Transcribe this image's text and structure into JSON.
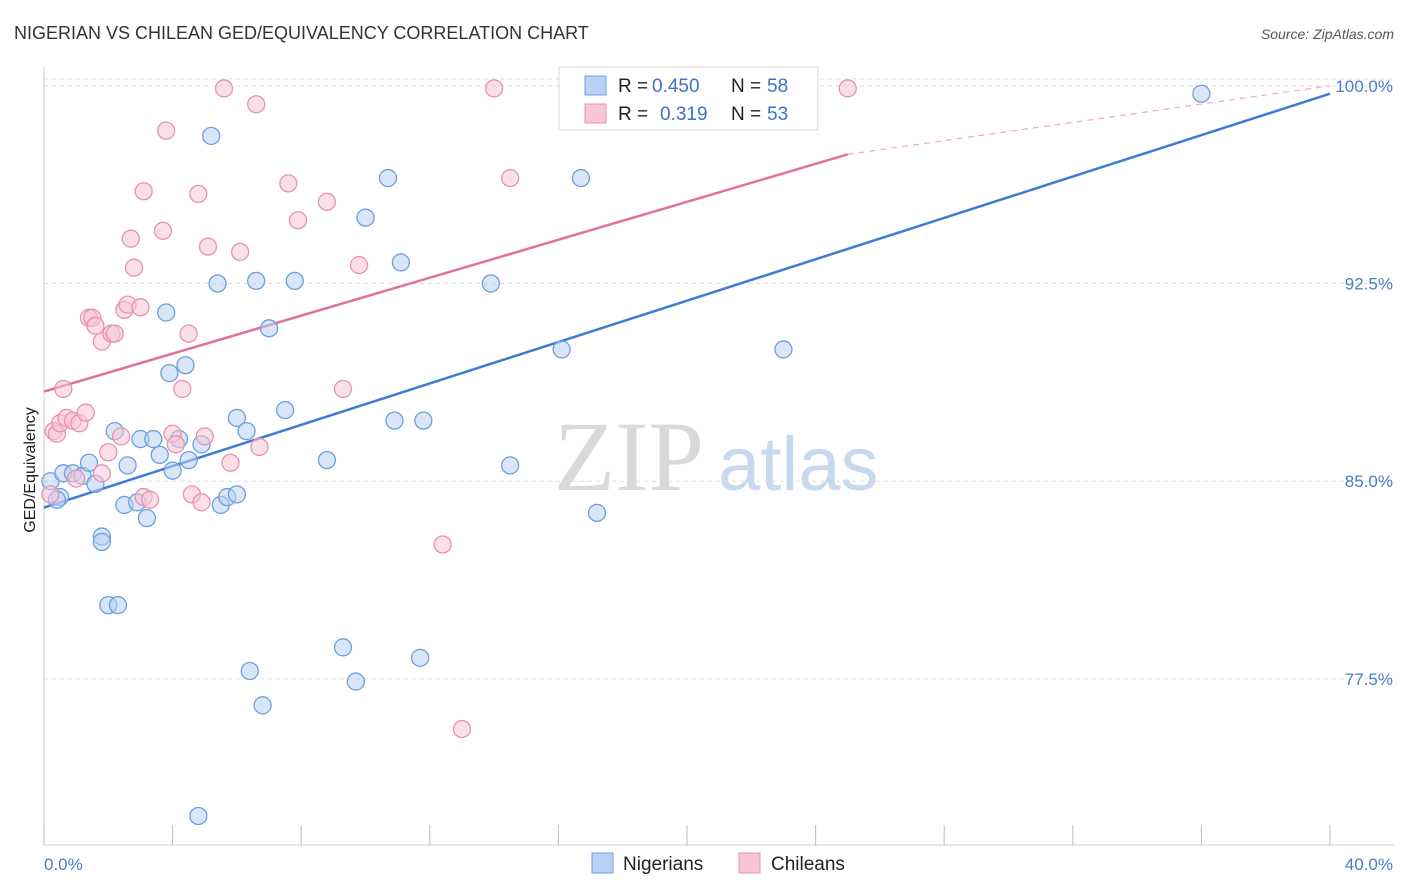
{
  "title": "NIGERIAN VS CHILEAN GED/EQUIVALENCY CORRELATION CHART",
  "source": "Source: ZipAtlas.com",
  "watermark": {
    "zip": "ZIP",
    "atlas": "atlas"
  },
  "colors": {
    "blue": "#3d7bd6",
    "blue_fill": "#b8d2f3",
    "pink": "#e0729a",
    "pink_fill": "#f8c5d5",
    "grid": "#dddddd",
    "tick_label": "#4a7cc7"
  },
  "legend": {
    "rows": [
      {
        "r_label": "R =",
        "r_value": "0.450",
        "n_label": "N =",
        "n_value": "58"
      },
      {
        "r_label": "R =",
        "r_value": "0.319",
        "n_label": "N =",
        "n_value": "53"
      }
    ]
  },
  "bottom_legend": [
    "Nigerians",
    "Chileans"
  ],
  "chart_data": {
    "type": "scatter",
    "title": "NIGERIAN VS CHILEAN GED/EQUIVALENCY CORRELATION CHART",
    "xlabel": "",
    "ylabel": "GED/Equivalency",
    "xlim": [
      0,
      40
    ],
    "ylim": [
      71.2,
      100.6
    ],
    "x_tick_labels": [
      "0.0%",
      "40.0%"
    ],
    "y_ticks": [
      77.5,
      85.0,
      92.5,
      100.0
    ],
    "y_tick_labels": [
      "77.5%",
      "85.0%",
      "92.5%",
      "100.0%"
    ],
    "grid": true,
    "legend_position": "top-center",
    "series": [
      {
        "name": "Nigerians",
        "color": "#3d7bd6",
        "r": 0.45,
        "n": 58,
        "trend": {
          "x": [
            0.0,
            40.0
          ],
          "y": [
            84.0,
            99.7
          ]
        },
        "points": [
          [
            0.2,
            85.0
          ],
          [
            0.5,
            84.4
          ],
          [
            0.6,
            85.3
          ],
          [
            0.9,
            85.3
          ],
          [
            1.2,
            85.2
          ],
          [
            1.4,
            85.7
          ],
          [
            1.6,
            84.9
          ],
          [
            1.8,
            82.9
          ],
          [
            1.8,
            82.7
          ],
          [
            2.0,
            80.3
          ],
          [
            2.2,
            86.9
          ],
          [
            2.3,
            80.3
          ],
          [
            2.5,
            84.1
          ],
          [
            2.6,
            85.6
          ],
          [
            2.9,
            84.2
          ],
          [
            3.0,
            86.6
          ],
          [
            3.2,
            83.6
          ],
          [
            3.4,
            86.6
          ],
          [
            3.6,
            86.0
          ],
          [
            3.8,
            91.4
          ],
          [
            3.9,
            89.1
          ],
          [
            4.0,
            85.4
          ],
          [
            4.2,
            86.6
          ],
          [
            4.4,
            89.4
          ],
          [
            4.5,
            85.8
          ],
          [
            4.9,
            86.4
          ],
          [
            4.8,
            72.3
          ],
          [
            5.2,
            98.1
          ],
          [
            5.4,
            92.5
          ],
          [
            5.5,
            84.1
          ],
          [
            5.7,
            84.4
          ],
          [
            6.0,
            87.4
          ],
          [
            6.0,
            84.5
          ],
          [
            6.3,
            86.9
          ],
          [
            6.6,
            92.6
          ],
          [
            6.4,
            77.8
          ],
          [
            6.8,
            76.5
          ],
          [
            7.0,
            90.8
          ],
          [
            7.5,
            87.7
          ],
          [
            7.8,
            92.6
          ],
          [
            8.8,
            85.8
          ],
          [
            9.3,
            78.7
          ],
          [
            9.7,
            77.4
          ],
          [
            10.0,
            95.0
          ],
          [
            10.7,
            96.5
          ],
          [
            10.9,
            87.3
          ],
          [
            11.1,
            93.3
          ],
          [
            11.7,
            78.3
          ],
          [
            11.8,
            87.3
          ],
          [
            13.9,
            92.5
          ],
          [
            14.5,
            85.6
          ],
          [
            16.1,
            90.0
          ],
          [
            16.7,
            96.5
          ],
          [
            17.2,
            83.8
          ],
          [
            18.5,
            99.5
          ],
          [
            23.0,
            90.0
          ],
          [
            36.0,
            99.7
          ],
          [
            0.4,
            84.3
          ]
        ]
      },
      {
        "name": "Chileans",
        "color": "#e0729a",
        "r": 0.319,
        "n": 53,
        "trend": {
          "x": [
            0.0,
            25.0
          ],
          "y": [
            88.4,
            97.4
          ]
        },
        "trend_extension": {
          "x": [
            25.0,
            40.0
          ],
          "y": [
            97.4,
            100.0
          ]
        },
        "points": [
          [
            0.2,
            84.5
          ],
          [
            0.3,
            86.9
          ],
          [
            0.4,
            86.8
          ],
          [
            0.5,
            87.2
          ],
          [
            0.6,
            88.5
          ],
          [
            0.7,
            87.4
          ],
          [
            0.9,
            87.3
          ],
          [
            1.0,
            85.1
          ],
          [
            1.1,
            87.2
          ],
          [
            1.3,
            87.6
          ],
          [
            1.4,
            91.2
          ],
          [
            1.5,
            91.2
          ],
          [
            1.6,
            90.9
          ],
          [
            1.8,
            90.3
          ],
          [
            1.8,
            85.3
          ],
          [
            2.0,
            86.1
          ],
          [
            2.1,
            90.6
          ],
          [
            2.2,
            90.6
          ],
          [
            2.4,
            86.7
          ],
          [
            2.5,
            91.5
          ],
          [
            2.6,
            91.7
          ],
          [
            2.7,
            94.2
          ],
          [
            2.8,
            93.1
          ],
          [
            3.0,
            91.6
          ],
          [
            3.1,
            84.4
          ],
          [
            3.1,
            96.0
          ],
          [
            3.3,
            84.3
          ],
          [
            3.7,
            94.5
          ],
          [
            3.8,
            98.3
          ],
          [
            4.0,
            86.8
          ],
          [
            4.1,
            86.4
          ],
          [
            4.3,
            88.5
          ],
          [
            4.5,
            90.6
          ],
          [
            4.6,
            84.5
          ],
          [
            4.8,
            95.9
          ],
          [
            4.9,
            84.2
          ],
          [
            5.0,
            86.7
          ],
          [
            5.1,
            93.9
          ],
          [
            5.6,
            99.9
          ],
          [
            5.8,
            85.7
          ],
          [
            6.1,
            93.7
          ],
          [
            6.6,
            99.3
          ],
          [
            6.7,
            86.3
          ],
          [
            7.6,
            96.3
          ],
          [
            7.9,
            94.9
          ],
          [
            8.8,
            95.6
          ],
          [
            9.3,
            88.5
          ],
          [
            9.8,
            93.2
          ],
          [
            12.4,
            82.6
          ],
          [
            13.0,
            75.6
          ],
          [
            14.0,
            99.9
          ],
          [
            14.5,
            96.5
          ],
          [
            25.0,
            99.9
          ]
        ]
      }
    ]
  }
}
